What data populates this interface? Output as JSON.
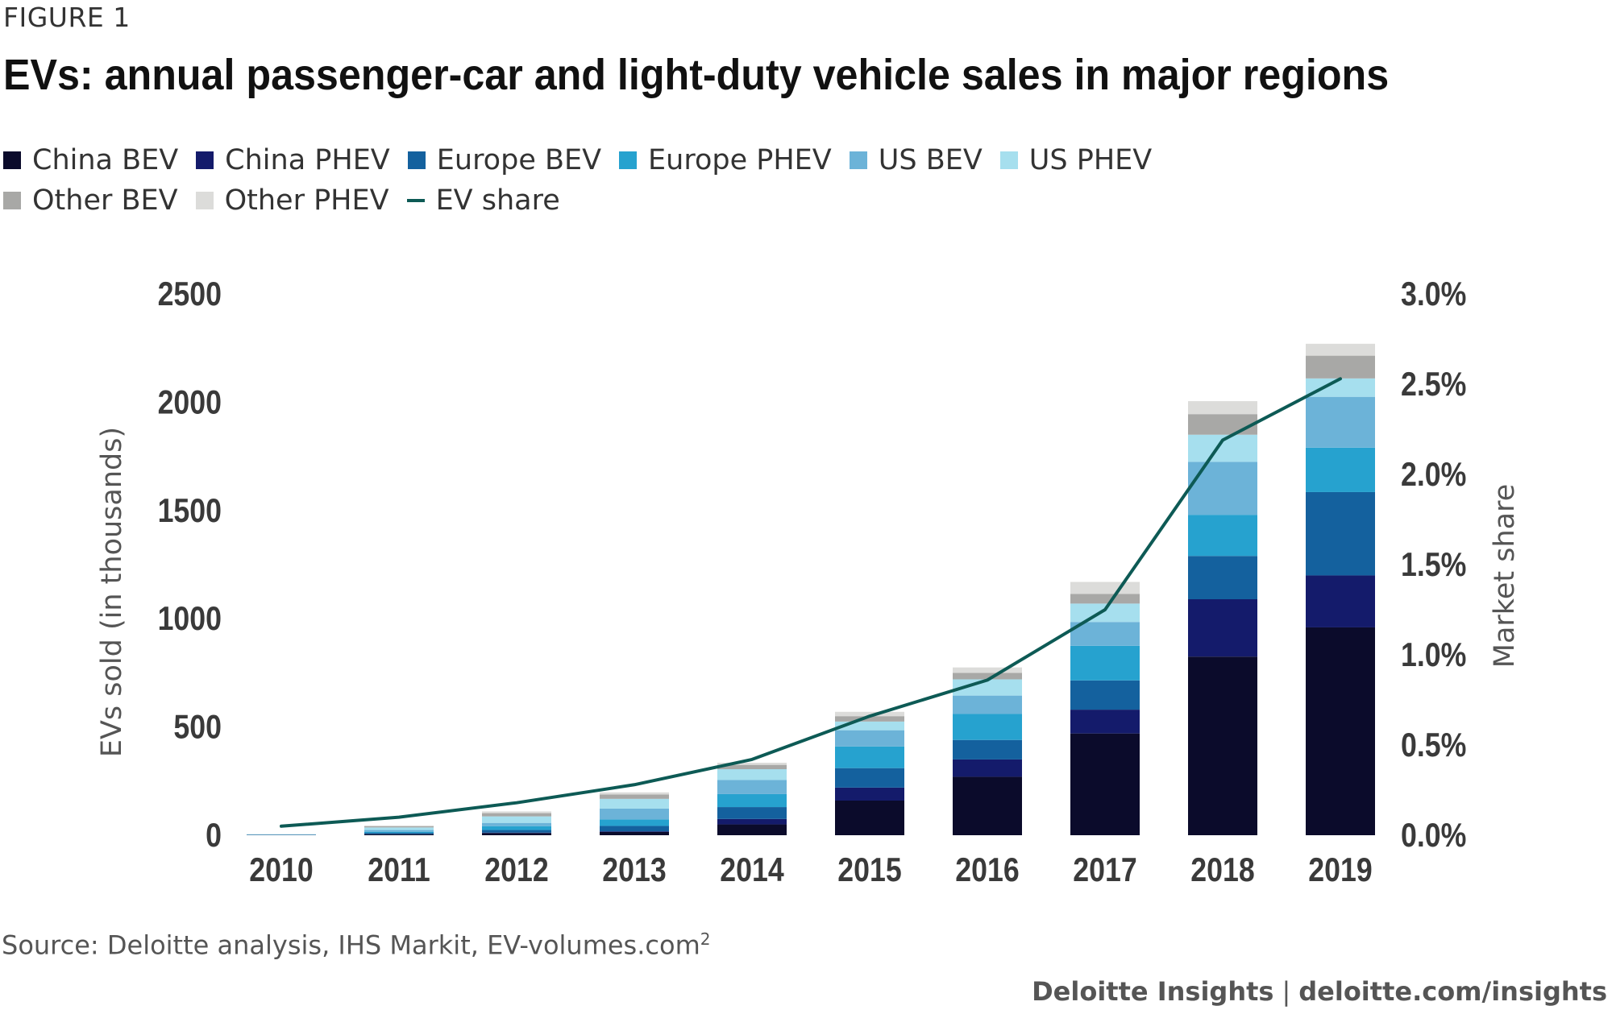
{
  "figure_label": "FIGURE 1",
  "source_text": "Source: Deloitte analysis, IHS Markit, EV-volumes.com",
  "source_sup": "2",
  "footer": {
    "brand": "Deloitte Insights",
    "separator": "|",
    "url": "deloitte.com/insights"
  },
  "colors": {
    "China BEV": "#0b0b2b",
    "China PHEV": "#141b6b",
    "Europe BEV": "#14619e",
    "Europe PHEV": "#26a2cf",
    "US BEV": "#6cb3d8",
    "US PHEV": "#a6dfee",
    "Other BEV": "#a8a8a6",
    "Other PHEV": "#dcdcda",
    "EV share": "#0d5a55"
  },
  "chart_data": {
    "type": "bar",
    "stacked": true,
    "title": "EVs: annual passenger-car and light-duty vehicle sales in major regions",
    "ylabel": "EVs sold (in thousands)",
    "y2label": "Market share",
    "ylim": [
      0,
      2500
    ],
    "yticks": [
      "0",
      "500",
      "1000",
      "1500",
      "2000",
      "2500"
    ],
    "y2lim": [
      0,
      3.0
    ],
    "y2ticks": [
      "0.0%",
      "0.5%",
      "1.0%",
      "1.5%",
      "2.0%",
      "2.5%",
      "3.0%"
    ],
    "categories": [
      "2010",
      "2011",
      "2012",
      "2013",
      "2014",
      "2015",
      "2016",
      "2017",
      "2018",
      "2019"
    ],
    "legend_position": "top-left",
    "grid": false,
    "series": [
      {
        "name": "China BEV",
        "values": [
          1,
          5,
          10,
          15,
          50,
          160,
          270,
          470,
          825,
          960
        ]
      },
      {
        "name": "China PHEV",
        "values": [
          0,
          0,
          2,
          3,
          25,
          60,
          80,
          110,
          265,
          240
        ]
      },
      {
        "name": "Europe BEV",
        "values": [
          1,
          6,
          12,
          25,
          55,
          90,
          90,
          135,
          200,
          385
        ]
      },
      {
        "name": "Europe PHEV",
        "values": [
          1,
          5,
          18,
          30,
          60,
          100,
          120,
          160,
          190,
          205
        ]
      },
      {
        "name": "US BEV",
        "values": [
          1,
          8,
          15,
          50,
          65,
          75,
          85,
          110,
          245,
          235
        ]
      },
      {
        "name": "US PHEV",
        "values": [
          1,
          12,
          30,
          45,
          50,
          40,
          75,
          85,
          125,
          85
        ]
      },
      {
        "name": "Other BEV",
        "values": [
          0,
          5,
          15,
          20,
          20,
          25,
          30,
          45,
          95,
          105
        ]
      },
      {
        "name": "Other PHEV",
        "values": [
          0,
          4,
          8,
          10,
          10,
          20,
          25,
          55,
          60,
          55
        ]
      }
    ],
    "line": {
      "name": "EV share",
      "axis": "y2",
      "values": [
        0.05,
        0.1,
        0.18,
        0.28,
        0.42,
        0.66,
        0.86,
        1.25,
        2.19,
        2.53
      ]
    }
  }
}
